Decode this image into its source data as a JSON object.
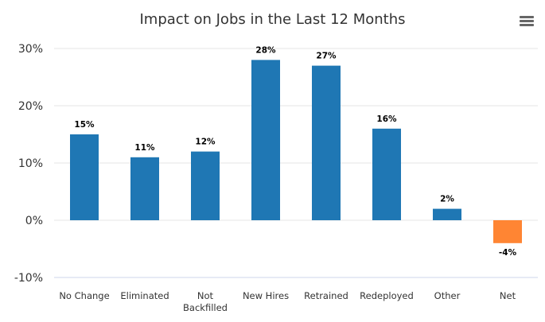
{
  "chart_data": {
    "type": "bar",
    "title": "Impact on Jobs in the Last 12 Months",
    "categories": [
      "No Change",
      "Eliminated",
      "Not Backfilled",
      "New Hires",
      "Retrained",
      "Redeployed",
      "Other",
      "Net"
    ],
    "category_lines": [
      [
        "No Change"
      ],
      [
        "Eliminated"
      ],
      [
        "Not",
        "Backfilled"
      ],
      [
        "New Hires"
      ],
      [
        "Retrained"
      ],
      [
        "Redeployed"
      ],
      [
        "Other"
      ],
      [
        "Net"
      ]
    ],
    "values": [
      15,
      11,
      12,
      28,
      27,
      16,
      2,
      -4
    ],
    "data_labels": [
      "15%",
      "11%",
      "12%",
      "28%",
      "27%",
      "16%",
      "2%",
      "-4%"
    ],
    "bar_colors": [
      "#1f77b4",
      "#1f77b4",
      "#1f77b4",
      "#1f77b4",
      "#1f77b4",
      "#1f77b4",
      "#1f77b4",
      "#ff8533"
    ],
    "yticks": [
      30,
      20,
      10,
      0,
      -10
    ],
    "ytick_labels": [
      "30%",
      "20%",
      "10%",
      "0%",
      "-10%"
    ],
    "ylim": [
      -10,
      30
    ],
    "grid": true,
    "legend": "none",
    "xlabel": "",
    "ylabel": ""
  },
  "menu_icon": "hamburger-menu-icon"
}
